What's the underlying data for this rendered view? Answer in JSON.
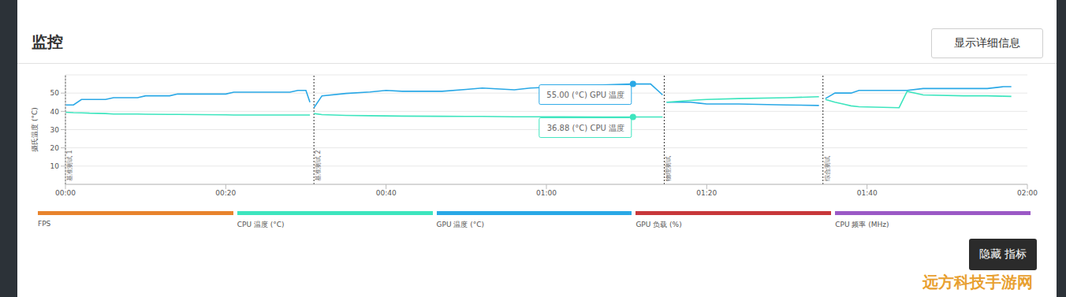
{
  "chart_data": {
    "type": "line",
    "title": "监控",
    "button": "显示详细信息",
    "y_label": "摄氏温度 (°C)",
    "x": [
      0,
      1,
      2,
      3,
      5,
      6,
      9,
      10,
      13,
      14,
      20,
      21,
      25,
      28,
      29,
      30,
      30.5,
      30.75,
      31,
      32,
      35,
      38,
      40,
      42,
      47,
      50,
      52,
      56,
      58,
      62,
      67,
      70.8,
      73,
      74.5,
      74.6,
      75,
      78,
      79,
      80,
      84,
      90,
      94,
      94.4,
      94.8,
      96,
      97,
      98,
      99,
      104,
      105,
      107,
      112,
      115,
      117,
      118
    ],
    "series": [
      {
        "name": "GPU 温度",
        "color": "#29a8e6",
        "values": [
          43.5,
          43.5,
          46.5,
          46.5,
          46.5,
          47.5,
          47.5,
          48.5,
          48.5,
          49.5,
          49.5,
          50.5,
          50.5,
          50.5,
          51.5,
          51.5,
          45,
          null,
          42,
          48.5,
          49.8,
          50.6,
          51.5,
          51,
          51,
          52,
          52.8,
          51.8,
          52.8,
          53.5,
          54.5,
          55,
          55,
          49,
          null,
          45,
          45,
          44.5,
          44,
          44,
          43.5,
          43.2,
          null,
          47,
          50,
          50,
          50,
          51.5,
          51.5,
          51.5,
          52.5,
          52.5,
          52.5,
          53.5,
          53.5
        ]
      },
      {
        "name": "CPU 温度",
        "color": "#3de5be",
        "values": [
          39.5,
          39.3,
          39.2,
          39,
          38.8,
          38.5,
          38.5,
          38.4,
          38.3,
          38.3,
          38.1,
          38,
          38,
          38,
          38,
          38,
          38,
          null,
          38.8,
          38.2,
          37.8,
          37.6,
          37.5,
          37.4,
          37.3,
          37.2,
          37.2,
          37,
          37,
          37,
          36.9,
          36.88,
          36.88,
          36.88,
          null,
          45,
          46,
          46.3,
          46.5,
          47,
          47.5,
          48,
          null,
          46.5,
          45,
          44,
          43,
          42.5,
          42,
          51,
          49,
          48.5,
          48.5,
          48.3,
          48.2
        ]
      }
    ],
    "xlim": [
      0,
      120
    ],
    "xticks": [
      {
        "value": 0,
        "label": "00:00"
      },
      {
        "value": 20,
        "label": "00:20"
      },
      {
        "value": 40,
        "label": "00:40"
      },
      {
        "value": 60,
        "label": "01:00"
      },
      {
        "value": 80,
        "label": "01:20"
      },
      {
        "value": 100,
        "label": "01:40"
      },
      {
        "value": 120,
        "label": "02:00"
      }
    ],
    "ylim": [
      0,
      60
    ],
    "yticks": [
      10,
      20,
      30,
      40,
      50
    ],
    "grid": true,
    "markers": [
      {
        "x": 0,
        "label": "基准测试 1"
      },
      {
        "x": 31,
        "label": "基准测试 2"
      },
      {
        "x": 74.7,
        "label": "物理测试"
      },
      {
        "x": 94.5,
        "label": "综合测试"
      }
    ],
    "annotations": [
      {
        "series": "GPU 温度",
        "x": 70.8,
        "y": 55,
        "label": "55.00 (°C) GPU 温度"
      },
      {
        "series": "CPU 温度",
        "x": 70.8,
        "y": 36.88,
        "label": "36.88 (°C) CPU 温度"
      }
    ],
    "metrics": [
      {
        "name": "FPS",
        "color": "#e8832c"
      },
      {
        "name": "CPU 温度 (°C)",
        "color": "#3de5be"
      },
      {
        "name": "GPU 温度 (°C)",
        "color": "#29a8e6"
      },
      {
        "name": "GPU 负载 (%)",
        "color": "#c8373a"
      },
      {
        "name": "CPU 频率 (MHz)",
        "color": "#9b59c6"
      }
    ],
    "hide_button": "隐藏 指标",
    "watermark": "远方科技手游网"
  }
}
